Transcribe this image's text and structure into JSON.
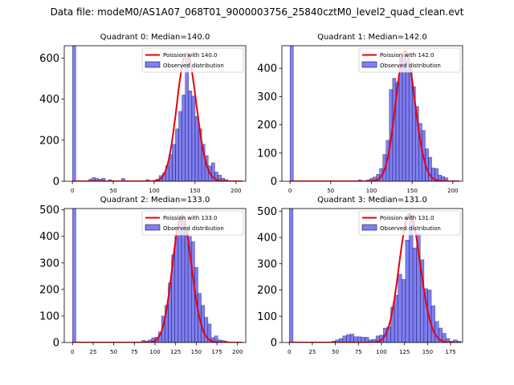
{
  "suptitle": "Data file: modeM0/AS1A07_068T01_9000003756_25840cztM0_level2_quad_clean.evt",
  "chart_data": [
    {
      "type": "bar",
      "title": "Quadrant 0: Median=140.0",
      "legend": [
        "Poission with 140.0",
        "Observed distribution"
      ],
      "legend_position": "top-right",
      "xlim": [
        -10,
        212
      ],
      "ylim": [
        0,
        660
      ],
      "xticks": [
        0,
        50,
        100,
        150,
        200
      ],
      "yticks": [
        0,
        200,
        400,
        600
      ],
      "bin_width": 4.1,
      "bins": [
        [
          0,
          700
        ],
        [
          20,
          10
        ],
        [
          24,
          18
        ],
        [
          28,
          14
        ],
        [
          32,
          10
        ],
        [
          36,
          15
        ],
        [
          44,
          8
        ],
        [
          60,
          14
        ],
        [
          90,
          8
        ],
        [
          102,
          10
        ],
        [
          106,
          28
        ],
        [
          110,
          40
        ],
        [
          114,
          75
        ],
        [
          118,
          130
        ],
        [
          122,
          180
        ],
        [
          126,
          255
        ],
        [
          130,
          340
        ],
        [
          134,
          420
        ],
        [
          138,
          620
        ],
        [
          142,
          440
        ],
        [
          146,
          415
        ],
        [
          150,
          315
        ],
        [
          154,
          255
        ],
        [
          158,
          180
        ],
        [
          162,
          125
        ],
        [
          166,
          75
        ],
        [
          170,
          90
        ],
        [
          174,
          45
        ],
        [
          178,
          30
        ],
        [
          182,
          15
        ],
        [
          186,
          8
        ]
      ],
      "poisson_mean": 140.0,
      "poisson_scale": 625
    },
    {
      "type": "bar",
      "title": "Quadrant 1: Median=142.0",
      "legend": [
        "Poission with 142.0",
        "Observed distribution"
      ],
      "legend_position": "top-right",
      "xlim": [
        -10,
        212
      ],
      "ylim": [
        0,
        480
      ],
      "xticks": [
        0,
        50,
        100,
        150,
        200
      ],
      "yticks": [
        0,
        100,
        200,
        300,
        400
      ],
      "bin_width": 4.1,
      "bins": [
        [
          0,
          500
        ],
        [
          84,
          5
        ],
        [
          94,
          5
        ],
        [
          98,
          10
        ],
        [
          102,
          15
        ],
        [
          106,
          25
        ],
        [
          110,
          45
        ],
        [
          114,
          95
        ],
        [
          118,
          145
        ],
        [
          122,
          325
        ],
        [
          126,
          365
        ],
        [
          130,
          350
        ],
        [
          134,
          440
        ],
        [
          138,
          445
        ],
        [
          142,
          430
        ],
        [
          146,
          395
        ],
        [
          150,
          335
        ],
        [
          154,
          265
        ],
        [
          158,
          205
        ],
        [
          162,
          180
        ],
        [
          166,
          115
        ],
        [
          170,
          85
        ],
        [
          174,
          47
        ],
        [
          178,
          45
        ],
        [
          182,
          22
        ],
        [
          186,
          17
        ],
        [
          190,
          12
        ]
      ],
      "poisson_mean": 142.0,
      "poisson_scale": 460
    },
    {
      "type": "bar",
      "title": "Quadrant 2: Median=133.0",
      "legend": [
        "Poission with 133.0",
        "Observed distribution"
      ],
      "legend_position": "top-right",
      "xlim": [
        -10,
        210
      ],
      "ylim": [
        0,
        505
      ],
      "xticks": [
        0,
        25,
        50,
        75,
        100,
        125,
        150,
        175,
        200
      ],
      "yticks": [
        0,
        100,
        200,
        300,
        400,
        500
      ],
      "bin_width": 4.1,
      "bins": [
        [
          0,
          520
        ],
        [
          84,
          8
        ],
        [
          88,
          5
        ],
        [
          92,
          10
        ],
        [
          96,
          18
        ],
        [
          100,
          20
        ],
        [
          104,
          40
        ],
        [
          108,
          100
        ],
        [
          112,
          140
        ],
        [
          116,
          225
        ],
        [
          120,
          330
        ],
        [
          124,
          400
        ],
        [
          128,
          460
        ],
        [
          132,
          480
        ],
        [
          136,
          430
        ],
        [
          140,
          400
        ],
        [
          144,
          380
        ],
        [
          148,
          283
        ],
        [
          152,
          185
        ],
        [
          156,
          140
        ],
        [
          160,
          95
        ],
        [
          164,
          70
        ],
        [
          168,
          18
        ],
        [
          172,
          25
        ],
        [
          176,
          10
        ],
        [
          180,
          8
        ],
        [
          184,
          5
        ]
      ],
      "poisson_mean": 133.0,
      "poisson_scale": 480
    },
    {
      "type": "bar",
      "title": "Quadrant 3: Median=131.0",
      "legend": [
        "Poission with 131.0",
        "Observed distribution"
      ],
      "legend_position": "top-right",
      "xlim": [
        -8,
        188
      ],
      "ylim": [
        0,
        510
      ],
      "xticks": [
        0,
        25,
        50,
        75,
        100,
        125,
        150,
        175
      ],
      "yticks": [
        0,
        100,
        200,
        300,
        400,
        500
      ],
      "bin_width": 4.1,
      "bins": [
        [
          0,
          520
        ],
        [
          46,
          5
        ],
        [
          50,
          10
        ],
        [
          54,
          15
        ],
        [
          58,
          25
        ],
        [
          62,
          30
        ],
        [
          66,
          32
        ],
        [
          70,
          22
        ],
        [
          74,
          22
        ],
        [
          78,
          20
        ],
        [
          82,
          20
        ],
        [
          86,
          10
        ],
        [
          90,
          12
        ],
        [
          94,
          25
        ],
        [
          98,
          28
        ],
        [
          102,
          55
        ],
        [
          106,
          60
        ],
        [
          110,
          135
        ],
        [
          114,
          180
        ],
        [
          118,
          260
        ],
        [
          122,
          240
        ],
        [
          126,
          390
        ],
        [
          130,
          485
        ],
        [
          134,
          360
        ],
        [
          138,
          415
        ],
        [
          142,
          315
        ],
        [
          146,
          205
        ],
        [
          150,
          200
        ],
        [
          154,
          140
        ],
        [
          158,
          80
        ],
        [
          162,
          55
        ],
        [
          166,
          35
        ],
        [
          170,
          15
        ],
        [
          174,
          5
        ],
        [
          178,
          10
        ],
        [
          182,
          5
        ]
      ],
      "poisson_mean": 131.0,
      "poisson_scale": 490
    }
  ]
}
